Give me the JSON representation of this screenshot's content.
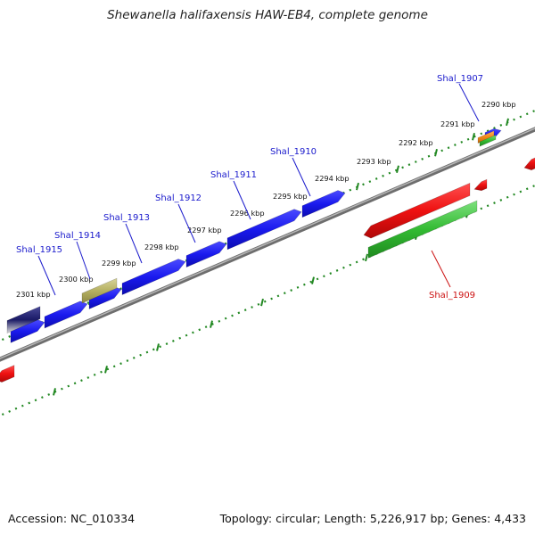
{
  "title": "Shewanella halifaxensis HAW-EB4, complete genome",
  "footer": {
    "accession": "Accession: NC_010334",
    "summary": "Topology: circular; Length: 5,226,917 bp; Genes: 4,433"
  },
  "colors": {
    "forward_gene": "#1a1aee",
    "reverse_gene": "#ee1111",
    "reverse_track2": "#33bb33",
    "olive_feature": "#b5b062",
    "navy_feature": "#1a1a66",
    "orange_feature": "#f08a1a",
    "backbone": "#8a8a8a",
    "ticks": "#228822",
    "forward_label": "#1a1acc",
    "reverse_label": "#cc1111"
  },
  "kbp_labels": [
    {
      "text": "2290 kbp"
    },
    {
      "text": "2291 kbp"
    },
    {
      "text": "2292 kbp"
    },
    {
      "text": "2293 kbp"
    },
    {
      "text": "2294 kbp"
    },
    {
      "text": "2295 kbp"
    },
    {
      "text": "2296 kbp"
    },
    {
      "text": "2297 kbp"
    },
    {
      "text": "2298 kbp"
    },
    {
      "text": "2299 kbp"
    },
    {
      "text": "2300 kbp"
    },
    {
      "text": "2301 kbp"
    }
  ],
  "gene_labels": [
    {
      "text": "Shal_1907",
      "strand": "forward"
    },
    {
      "text": "Shal_1910",
      "strand": "forward"
    },
    {
      "text": "Shal_1911",
      "strand": "forward"
    },
    {
      "text": "Shal_1912",
      "strand": "forward"
    },
    {
      "text": "Shal_1913",
      "strand": "forward"
    },
    {
      "text": "Shal_1914",
      "strand": "forward"
    },
    {
      "text": "Shal_1915",
      "strand": "forward"
    },
    {
      "text": "Shal_1909",
      "strand": "reverse"
    }
  ]
}
